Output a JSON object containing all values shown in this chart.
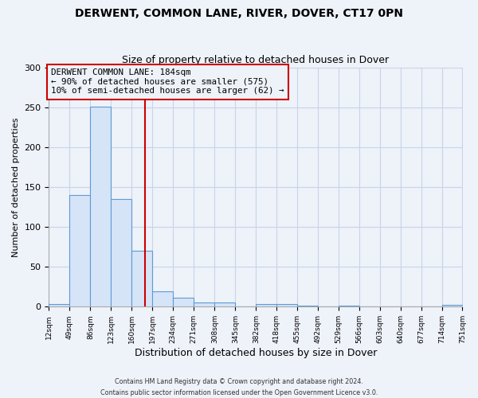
{
  "title": "DERWENT, COMMON LANE, RIVER, DOVER, CT17 0PN",
  "subtitle": "Size of property relative to detached houses in Dover",
  "xlabel": "Distribution of detached houses by size in Dover",
  "ylabel": "Number of detached properties",
  "bin_edges": [
    12,
    49,
    86,
    123,
    160,
    197,
    234,
    271,
    308,
    345,
    382,
    418,
    455,
    492,
    529,
    566,
    603,
    640,
    677,
    714,
    751
  ],
  "bin_counts": [
    3,
    140,
    251,
    135,
    70,
    19,
    11,
    5,
    5,
    0,
    3,
    3,
    1,
    0,
    1,
    0,
    0,
    0,
    0,
    2
  ],
  "bar_facecolor": "#d6e4f7",
  "bar_edgecolor": "#5b9bd5",
  "vline_x": 184,
  "vline_color": "#cc0000",
  "annotation_box_edgecolor": "#cc0000",
  "annotation_line1": "DERWENT COMMON LANE: 184sqm",
  "annotation_line2": "← 90% of detached houses are smaller (575)",
  "annotation_line3": "10% of semi-detached houses are larger (62) →",
  "ylim": [
    0,
    300
  ],
  "yticks": [
    0,
    50,
    100,
    150,
    200,
    250,
    300
  ],
  "tick_labels": [
    "12sqm",
    "49sqm",
    "86sqm",
    "123sqm",
    "160sqm",
    "197sqm",
    "234sqm",
    "271sqm",
    "308sqm",
    "345sqm",
    "382sqm",
    "418sqm",
    "455sqm",
    "492sqm",
    "529sqm",
    "566sqm",
    "603sqm",
    "640sqm",
    "677sqm",
    "714sqm",
    "751sqm"
  ],
  "footnote1": "Contains HM Land Registry data © Crown copyright and database right 2024.",
  "footnote2": "Contains public sector information licensed under the Open Government Licence v3.0.",
  "background_color": "#eef2f9",
  "grid_color": "#c8d4e8"
}
